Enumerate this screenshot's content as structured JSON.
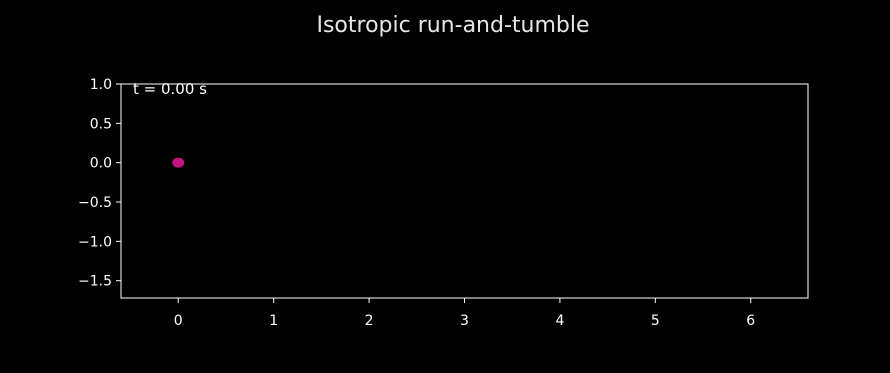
{
  "chart_data": {
    "type": "scatter",
    "title": "Isotropic run-and-tumble",
    "xlabel": "",
    "ylabel": "",
    "annotation": "t = 0.00 s",
    "xlim": [
      -0.6,
      6.6
    ],
    "ylim": [
      -1.72,
      1.0
    ],
    "xticks": [
      0,
      1,
      2,
      3,
      4,
      5,
      6
    ],
    "xtick_labels": [
      "0",
      "1",
      "2",
      "3",
      "4",
      "5",
      "6"
    ],
    "yticks": [
      1.0,
      0.5,
      0.0,
      -0.5,
      -1.0,
      -1.5
    ],
    "ytick_labels": [
      "1.0",
      "0.5",
      "0.0",
      "−0.5",
      "−1.0",
      "−1.5"
    ],
    "grid": false,
    "points": [
      {
        "x": 0.0,
        "y": 0.0
      }
    ],
    "colors": {
      "background": "#000000",
      "foreground": "#ffffff",
      "point": "#c0157e"
    }
  }
}
